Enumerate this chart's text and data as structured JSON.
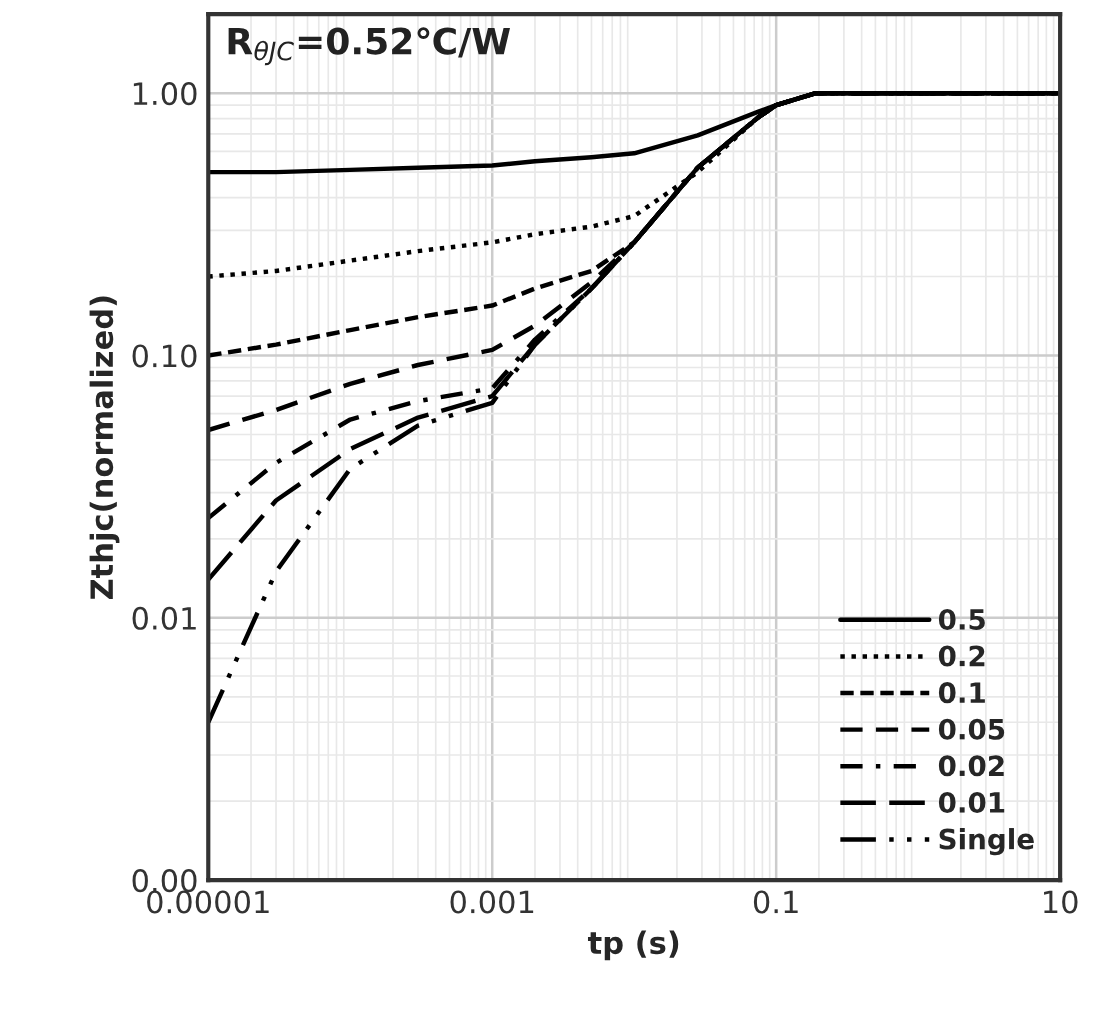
{
  "chart_data": {
    "type": "line",
    "xlabel": "tp (s)",
    "ylabel": "Zthjc(normalized)",
    "annotations": [
      "R$_{θJC}$=0.52℃/W"
    ],
    "x": [
      1e-05,
      3e-05,
      0.0001,
      0.0003,
      0.001,
      0.002,
      0.005,
      0.01,
      0.028,
      0.075,
      0.1,
      0.19,
      10
    ],
    "series": [
      {
        "name": "0.5",
        "color": "#000000",
        "line_style": "solid",
        "values": [
          0.5,
          0.5,
          0.51,
          0.52,
          0.53,
          0.55,
          0.57,
          0.59,
          0.69,
          0.85,
          0.9,
          1.0,
          1.0
        ]
      },
      {
        "name": "0.2",
        "color": "#000000",
        "line_style": "dotted",
        "values": [
          0.2,
          0.21,
          0.23,
          0.25,
          0.27,
          0.29,
          0.31,
          0.34,
          0.5,
          0.81,
          0.9,
          1.0,
          1.0
        ]
      },
      {
        "name": "0.1",
        "color": "#000000",
        "line_style": "dashed",
        "values": [
          0.1,
          0.11,
          0.125,
          0.14,
          0.155,
          0.18,
          0.21,
          0.27,
          0.52,
          0.81,
          0.9,
          1.0,
          1.0
        ]
      },
      {
        "name": "0.05",
        "color": "#000000",
        "line_style": "longdash",
        "values": [
          0.052,
          0.062,
          0.078,
          0.092,
          0.105,
          0.13,
          0.19,
          0.27,
          0.52,
          0.81,
          0.9,
          1.0,
          1.0
        ]
      },
      {
        "name": "0.02",
        "color": "#000000",
        "line_style": "dashdot",
        "values": [
          0.024,
          0.039,
          0.057,
          0.067,
          0.075,
          0.115,
          0.18,
          0.27,
          0.52,
          0.81,
          0.9,
          1.0,
          1.0
        ]
      },
      {
        "name": "0.01",
        "color": "#000000",
        "line_style": "longerdash",
        "values": [
          0.014,
          0.028,
          0.044,
          0.058,
          0.07,
          0.11,
          0.18,
          0.27,
          0.52,
          0.81,
          0.9,
          1.0,
          1.0
        ]
      },
      {
        "name": "Single",
        "color": "#000000",
        "line_style": "dashdotdot",
        "values": [
          0.004,
          0.015,
          0.037,
          0.054,
          0.066,
          0.11,
          0.18,
          0.27,
          0.52,
          0.81,
          0.9,
          1.0,
          1.0
        ]
      }
    ],
    "log": "xy",
    "xlim": [
      1e-05,
      10
    ],
    "ylim": [
      0.001,
      2
    ],
    "xticks": [
      {
        "value": 1e-05,
        "label": "0.00001"
      },
      0.001,
      0.1,
      10
    ],
    "yticks": [
      {
        "value": 0.001,
        "label": "0.00"
      },
      {
        "value": 0.01,
        "label": "0.01"
      },
      {
        "value": 0.1,
        "label": "0.10"
      },
      {
        "value": 1,
        "label": "1.00"
      }
    ],
    "grid": true,
    "legend": "bottom right"
  }
}
